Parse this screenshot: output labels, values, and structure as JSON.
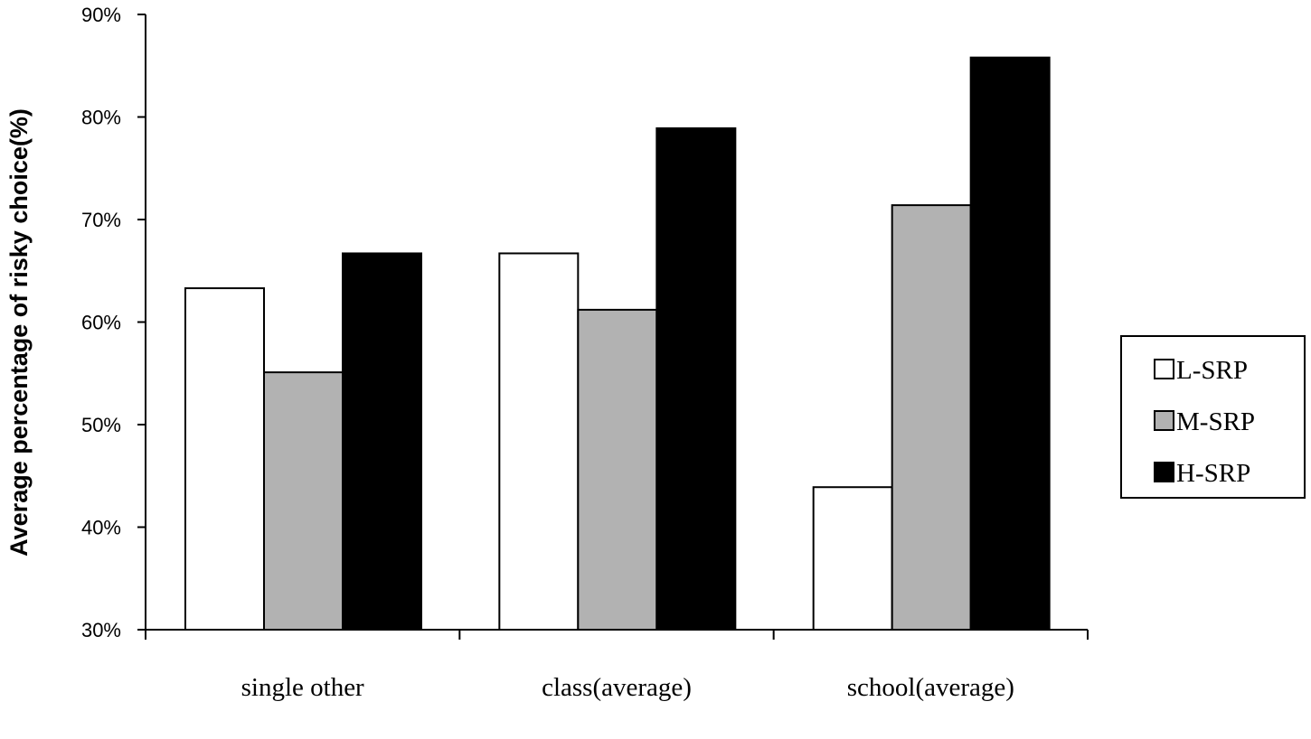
{
  "chart_data": {
    "type": "bar",
    "title": "",
    "xlabel": "",
    "ylabel": "Average percentage of risky choice(%)",
    "ylim": [
      30,
      90
    ],
    "yticks": [
      "30%",
      "40%",
      "50%",
      "60%",
      "70%",
      "80%",
      "90%"
    ],
    "ytick_values": [
      30,
      40,
      50,
      60,
      70,
      80,
      90
    ],
    "categories": [
      "single other",
      "class(average)",
      "school(average)"
    ],
    "series": [
      {
        "name": "L-SRP",
        "color": "#ffffff",
        "values": [
          63.3,
          66.7,
          43.9
        ]
      },
      {
        "name": "M-SRP",
        "color": "#b2b2b2",
        "values": [
          55.1,
          61.2,
          71.4
        ]
      },
      {
        "name": "H-SRP",
        "color": "#000000",
        "values": [
          66.7,
          78.9,
          85.8
        ]
      }
    ],
    "legend_position": "right",
    "grid": false
  }
}
